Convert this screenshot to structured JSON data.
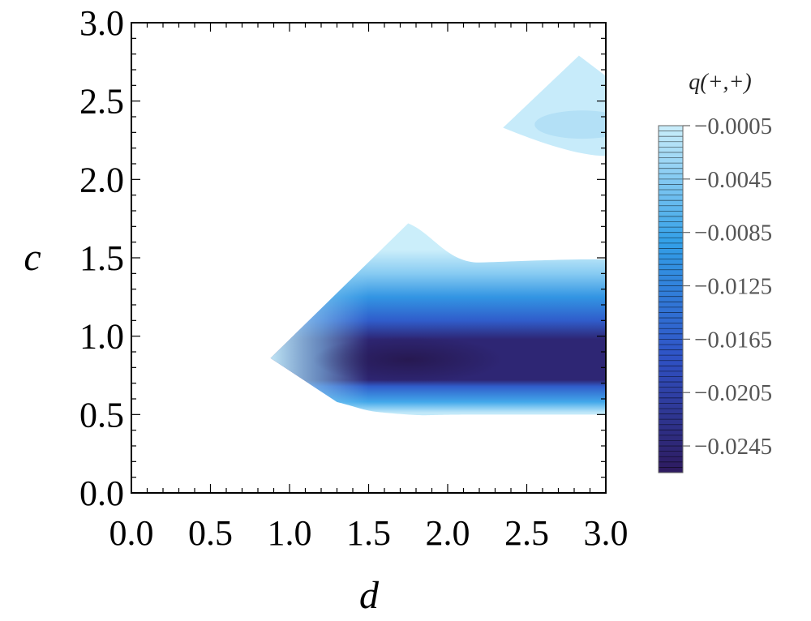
{
  "chart_data": {
    "type": "heatmap",
    "subtype": "contour",
    "xlabel": "d",
    "ylabel": "c",
    "xlim": [
      0,
      3
    ],
    "ylim": [
      0,
      3
    ],
    "x_ticks": [
      "0.0",
      "0.5",
      "1.0",
      "1.5",
      "2.0",
      "2.5",
      "3.0"
    ],
    "y_ticks": [
      "0.0",
      "0.5",
      "1.0",
      "1.5",
      "2.0",
      "2.5",
      "3.0"
    ],
    "colorbar": {
      "title": "q(+,+)",
      "min": -0.0265,
      "max": -0.0005,
      "tick_labels": [
        "−0.0005",
        "−0.0045",
        "−0.0085",
        "−0.0125",
        "−0.0165",
        "−0.0205",
        "−0.0245"
      ],
      "tick_values": [
        -0.0005,
        -0.0045,
        -0.0085,
        -0.0125,
        -0.0165,
        -0.0205,
        -0.0245
      ],
      "colors": [
        "#cbeefa",
        "#33a0e8",
        "#2f52c6",
        "#2e1a5e"
      ]
    },
    "regions": [
      {
        "name": "main band",
        "outline": [
          [
            0.88,
            0.86
          ],
          [
            1.75,
            1.72
          ],
          [
            2.2,
            1.47
          ],
          [
            3.0,
            1.49
          ],
          [
            3.0,
            0.5
          ],
          [
            2.2,
            0.5
          ],
          [
            1.75,
            0.5
          ],
          [
            1.3,
            0.58
          ],
          [
            0.88,
            0.86
          ]
        ],
        "min_value": -0.0265,
        "min_location": [
          1.75,
          0.85
        ],
        "core_c_range": [
          0.72,
          0.98
        ],
        "edge_value": -0.0005
      },
      {
        "name": "upper patch",
        "outline": [
          [
            2.35,
            2.33
          ],
          [
            2.83,
            2.79
          ],
          [
            3.0,
            2.66
          ],
          [
            3.0,
            2.15
          ],
          [
            2.35,
            2.33
          ]
        ],
        "min_value": -0.002,
        "min_location": [
          2.85,
          2.35
        ],
        "edge_value": -0.0005
      }
    ],
    "grid": false,
    "legend": "colorbar right"
  }
}
